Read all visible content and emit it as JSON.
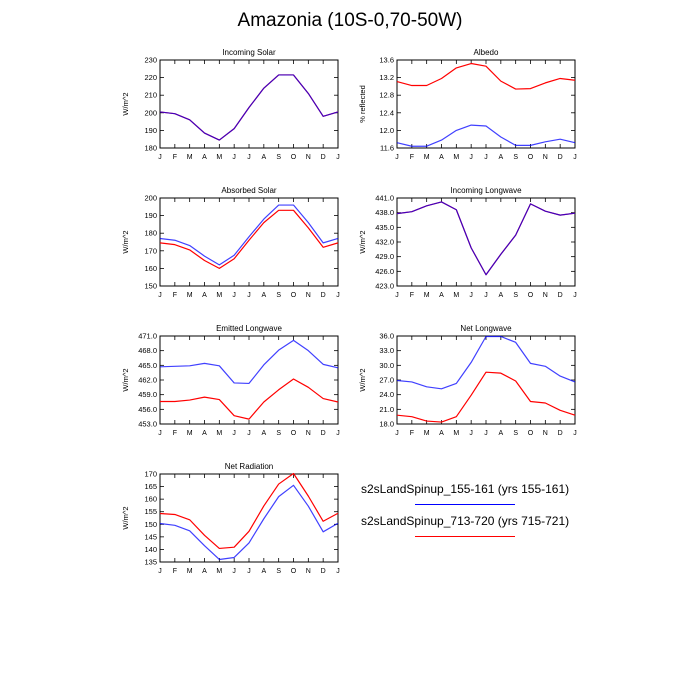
{
  "figure": {
    "title": "Amazonia (10S-0,70-50W)",
    "series_colors": {
      "blue": "#0000ff",
      "red": "#ff0000"
    }
  },
  "legend": [
    {
      "label": "s2sLandSpinup_155-161 (yrs 155-161)",
      "color": "#0000ff"
    },
    {
      "label": "s2sLandSpinup_713-720 (yrs 715-721)",
      "color": "#ff0000"
    }
  ],
  "chart_data": [
    {
      "type": "line",
      "title": "Incoming Solar",
      "ylabel": "W/m^2",
      "categories": [
        "J",
        "F",
        "M",
        "A",
        "M",
        "J",
        "J",
        "A",
        "S",
        "O",
        "N",
        "D",
        "J"
      ],
      "ylim": [
        180,
        230
      ],
      "yticks": [
        180,
        190,
        200,
        210,
        220,
        230
      ],
      "ytick_labels": [
        "180",
        "190",
        "200",
        "210",
        "220",
        "230"
      ],
      "series": [
        {
          "name": "s2sLandSpinup_155-161 (yrs 155-161)",
          "color": "#0000ff",
          "values": [
            200.5,
            199.5,
            196,
            188.5,
            184.5,
            191,
            203,
            214,
            221.5,
            221.5,
            211,
            198,
            200.5
          ]
        },
        {
          "name": "s2sLandSpinup_713-720 (yrs 715-721)",
          "color": "#ff0000",
          "values": [
            200.5,
            199.5,
            196,
            188.5,
            184.5,
            191,
            203,
            214,
            221.5,
            221.5,
            211,
            198,
            200.5
          ]
        }
      ]
    },
    {
      "type": "line",
      "title": "Albedo",
      "ylabel": "% reflected",
      "categories": [
        "J",
        "F",
        "M",
        "A",
        "M",
        "J",
        "J",
        "A",
        "S",
        "O",
        "N",
        "D",
        "J"
      ],
      "ylim": [
        11.6,
        13.6
      ],
      "yticks": [
        11.6,
        12.0,
        12.4,
        12.8,
        13.2,
        13.6
      ],
      "ytick_labels": [
        "11.6",
        "12.0",
        "12.4",
        "12.8",
        "13.2",
        "13.6"
      ],
      "series": [
        {
          "name": "s2sLandSpinup_155-161 (yrs 155-161)",
          "color": "#0000ff",
          "values": [
            11.72,
            11.64,
            11.64,
            11.78,
            12.0,
            12.12,
            12.1,
            11.85,
            11.66,
            11.66,
            11.74,
            11.8,
            11.72
          ]
        },
        {
          "name": "s2sLandSpinup_713-720 (yrs 715-721)",
          "color": "#ff0000",
          "values": [
            13.11,
            13.02,
            13.02,
            13.18,
            13.42,
            13.52,
            13.46,
            13.12,
            12.94,
            12.95,
            13.08,
            13.18,
            13.14
          ]
        }
      ]
    },
    {
      "type": "line",
      "title": "Absorbed Solar",
      "ylabel": "W/m^2",
      "categories": [
        "J",
        "F",
        "M",
        "A",
        "M",
        "J",
        "J",
        "A",
        "S",
        "O",
        "N",
        "D",
        "J"
      ],
      "ylim": [
        150,
        200
      ],
      "yticks": [
        150,
        160,
        170,
        180,
        190,
        200
      ],
      "ytick_labels": [
        "150",
        "160",
        "170",
        "180",
        "190",
        "200"
      ],
      "series": [
        {
          "name": "s2sLandSpinup_155-161 (yrs 155-161)",
          "color": "#0000ff",
          "values": [
            177,
            176,
            173,
            167,
            162,
            167.5,
            178,
            188,
            196,
            196,
            186,
            174.5,
            177
          ]
        },
        {
          "name": "s2sLandSpinup_713-720 (yrs 715-721)",
          "color": "#ff0000",
          "values": [
            174.5,
            173.5,
            170.5,
            164.5,
            160,
            165.5,
            176,
            186,
            193,
            193,
            183,
            172,
            174.5
          ]
        }
      ]
    },
    {
      "type": "line",
      "title": "Incoming Longwave",
      "ylabel": "W/m^2",
      "categories": [
        "J",
        "F",
        "M",
        "A",
        "M",
        "J",
        "J",
        "A",
        "S",
        "O",
        "N",
        "D",
        "J"
      ],
      "ylim": [
        423.0,
        441.0
      ],
      "yticks": [
        423.0,
        426.0,
        429.0,
        432.0,
        435.0,
        438.0,
        441.0
      ],
      "ytick_labels": [
        "423.0",
        "426.0",
        "429.0",
        "432.0",
        "435.0",
        "438.0",
        "441.0"
      ],
      "series": [
        {
          "name": "s2sLandSpinup_155-161 (yrs 155-161)",
          "color": "#0000ff",
          "values": [
            437.8,
            438.2,
            439.4,
            440.2,
            438.6,
            430.8,
            425.3,
            429.5,
            433.4,
            439.8,
            438.3,
            437.5,
            437.9
          ]
        },
        {
          "name": "s2sLandSpinup_713-720 (yrs 715-721)",
          "color": "#ff0000",
          "values": [
            437.8,
            438.2,
            439.4,
            440.2,
            438.6,
            430.8,
            425.3,
            429.5,
            433.4,
            439.8,
            438.3,
            437.5,
            437.9
          ]
        }
      ]
    },
    {
      "type": "line",
      "title": "Emitted Longwave",
      "ylabel": "W/m^2",
      "categories": [
        "J",
        "F",
        "M",
        "A",
        "M",
        "J",
        "J",
        "A",
        "S",
        "O",
        "N",
        "D",
        "J"
      ],
      "ylim": [
        453.0,
        471.0
      ],
      "yticks": [
        453.0,
        456.0,
        459.0,
        462.0,
        465.0,
        468.0,
        471.0
      ],
      "ytick_labels": [
        "453.0",
        "456.0",
        "459.0",
        "462.0",
        "465.0",
        "468.0",
        "471.0"
      ],
      "series": [
        {
          "name": "s2sLandSpinup_155-161 (yrs 155-161)",
          "color": "#0000ff",
          "values": [
            464.7,
            464.8,
            464.9,
            465.4,
            464.9,
            461.4,
            461.3,
            465.1,
            468.1,
            470.1,
            468.0,
            465.2,
            464.5
          ]
        },
        {
          "name": "s2sLandSpinup_713-720 (yrs 715-721)",
          "color": "#ff0000",
          "values": [
            457.6,
            457.6,
            457.9,
            458.5,
            458.0,
            454.7,
            454.0,
            457.5,
            460.0,
            462.2,
            460.5,
            458.2,
            457.5
          ]
        }
      ]
    },
    {
      "type": "line",
      "title": "Net Longwave",
      "ylabel": "W/m^2",
      "categories": [
        "J",
        "F",
        "M",
        "A",
        "M",
        "J",
        "J",
        "A",
        "S",
        "O",
        "N",
        "D",
        "J"
      ],
      "ylim": [
        18.0,
        36.0
      ],
      "yticks": [
        18.0,
        21.0,
        24.0,
        27.0,
        30.0,
        33.0,
        36.0
      ],
      "ytick_labels": [
        "18.0",
        "21.0",
        "24.0",
        "27.0",
        "30.0",
        "33.0",
        "36.0"
      ],
      "series": [
        {
          "name": "s2sLandSpinup_155-161 (yrs 155-161)",
          "color": "#0000ff",
          "values": [
            26.9,
            26.6,
            25.6,
            25.2,
            26.3,
            30.6,
            35.9,
            35.9,
            34.7,
            30.4,
            29.8,
            27.8,
            26.6
          ]
        },
        {
          "name": "s2sLandSpinup_713-720 (yrs 715-721)",
          "color": "#ff0000",
          "values": [
            19.8,
            19.5,
            18.6,
            18.4,
            19.5,
            23.9,
            28.6,
            28.4,
            26.8,
            22.6,
            22.3,
            20.8,
            19.8
          ]
        }
      ]
    },
    {
      "type": "line",
      "title": "Net Radiation",
      "ylabel": "W/m^2",
      "categories": [
        "J",
        "F",
        "M",
        "A",
        "M",
        "J",
        "J",
        "A",
        "S",
        "O",
        "N",
        "D",
        "J"
      ],
      "ylim": [
        135,
        170
      ],
      "yticks": [
        135,
        140,
        145,
        150,
        155,
        160,
        165,
        170
      ],
      "ytick_labels": [
        "135",
        "140",
        "145",
        "150",
        "155",
        "160",
        "165",
        "170"
      ],
      "series": [
        {
          "name": "s2sLandSpinup_155-161 (yrs 155-161)",
          "color": "#0000ff",
          "values": [
            150.3,
            149.6,
            147.4,
            141.5,
            136.0,
            136.8,
            142.6,
            152.2,
            161.0,
            165.5,
            157.2,
            147.0,
            150.4
          ]
        },
        {
          "name": "s2sLandSpinup_713-720 (yrs 715-721)",
          "color": "#ff0000",
          "values": [
            154.3,
            153.9,
            151.8,
            145.6,
            140.4,
            140.9,
            147.2,
            157.3,
            166.0,
            170.2,
            161.2,
            151.2,
            154.4
          ]
        }
      ]
    }
  ]
}
